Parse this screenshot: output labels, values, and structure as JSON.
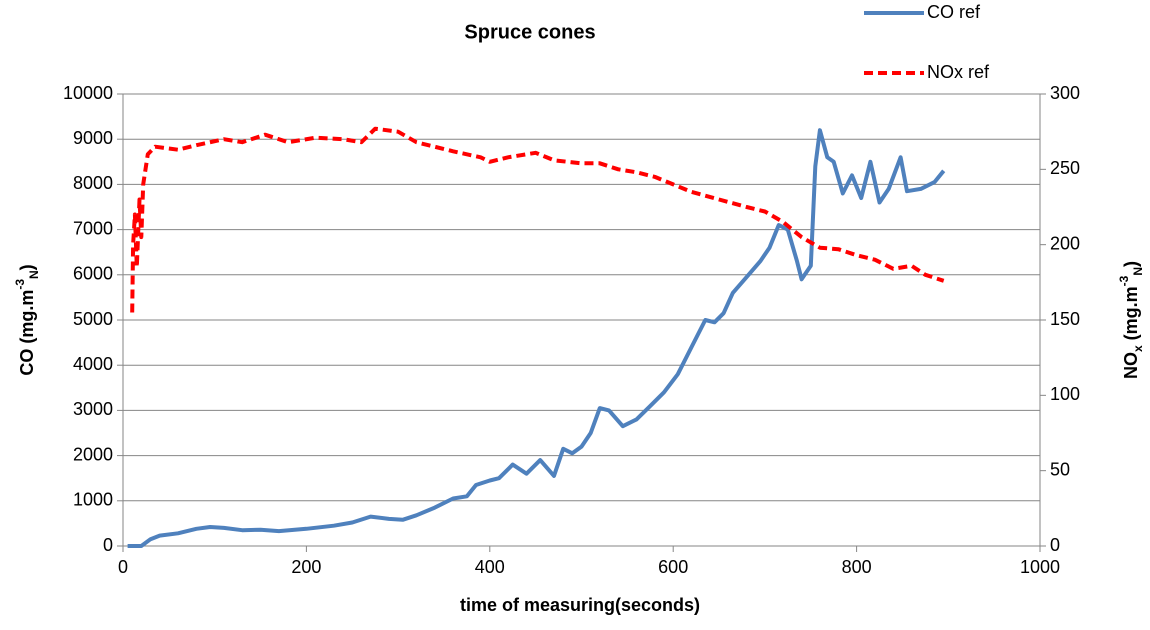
{
  "chart_data": {
    "type": "line",
    "title": "Spruce cones",
    "x_label": "time of measuring(seconds)",
    "y_label": [
      "CO (mg.m",
      "-3",
      "N",
      ")"
    ],
    "y2_label": [
      "NO",
      "x",
      " (mg.m",
      "-3",
      "N",
      ")"
    ],
    "xlim": [
      0,
      1000
    ],
    "xticks": [
      0,
      200,
      400,
      600,
      800,
      1000
    ],
    "ylim": [
      0,
      10000
    ],
    "yticks": [
      0,
      1000,
      2000,
      3000,
      4000,
      5000,
      6000,
      7000,
      8000,
      9000,
      10000
    ],
    "y2lim": [
      0,
      300
    ],
    "y2ticks": [
      0,
      50,
      100,
      150,
      200,
      250,
      300
    ],
    "grid": true,
    "legend": "top-right",
    "series": [
      {
        "name": "CO ref",
        "color": "#4f81bd",
        "axis": "y",
        "x": [
          5,
          20,
          30,
          40,
          60,
          80,
          95,
          110,
          130,
          150,
          170,
          200,
          230,
          250,
          270,
          290,
          305,
          320,
          340,
          360,
          375,
          385,
          400,
          410,
          425,
          440,
          455,
          470,
          480,
          490,
          500,
          510,
          520,
          530,
          545,
          560,
          575,
          590,
          605,
          620,
          635,
          645,
          655,
          665,
          680,
          695,
          705,
          715,
          725,
          735,
          740,
          750,
          755,
          760,
          768,
          775,
          785,
          795,
          805,
          815,
          825,
          835,
          848,
          855,
          870,
          885,
          895
        ],
        "values": [
          0,
          0,
          150,
          230,
          280,
          380,
          420,
          400,
          350,
          360,
          330,
          380,
          450,
          520,
          650,
          600,
          580,
          680,
          850,
          1050,
          1100,
          1350,
          1450,
          1500,
          1800,
          1600,
          1900,
          1550,
          2150,
          2050,
          2200,
          2500,
          3050,
          3000,
          2650,
          2800,
          3100,
          3400,
          3800,
          4400,
          5000,
          4950,
          5150,
          5600,
          5950,
          6300,
          6600,
          7100,
          7000,
          6300,
          5900,
          6200,
          8400,
          9200,
          8600,
          8500,
          7800,
          8200,
          7700,
          8500,
          7600,
          7900,
          8600,
          7850,
          7900,
          8050,
          8300
        ]
      },
      {
        "name": "NOx ref",
        "color": "#ff0000",
        "axis": "y2",
        "dashed": true,
        "x": [
          10,
          11,
          13,
          15,
          18,
          20,
          22,
          27,
          35,
          60,
          80,
          110,
          130,
          155,
          180,
          210,
          240,
          260,
          275,
          300,
          320,
          360,
          390,
          400,
          420,
          450,
          470,
          500,
          520,
          540,
          560,
          580,
          600,
          620,
          650,
          680,
          700,
          720,
          740,
          760,
          780,
          800,
          820,
          840,
          860,
          875,
          885,
          895
        ],
        "values": [
          155,
          200,
          220,
          185,
          230,
          205,
          240,
          260,
          265,
          263,
          266,
          270,
          268,
          273,
          268,
          271,
          270,
          268,
          277,
          275,
          268,
          262,
          258,
          255,
          258,
          261,
          256,
          254,
          254,
          250,
          248,
          245,
          240,
          235,
          230,
          225,
          222,
          215,
          205,
          198,
          197,
          193,
          190,
          184,
          186,
          180,
          178,
          176
        ]
      }
    ]
  }
}
